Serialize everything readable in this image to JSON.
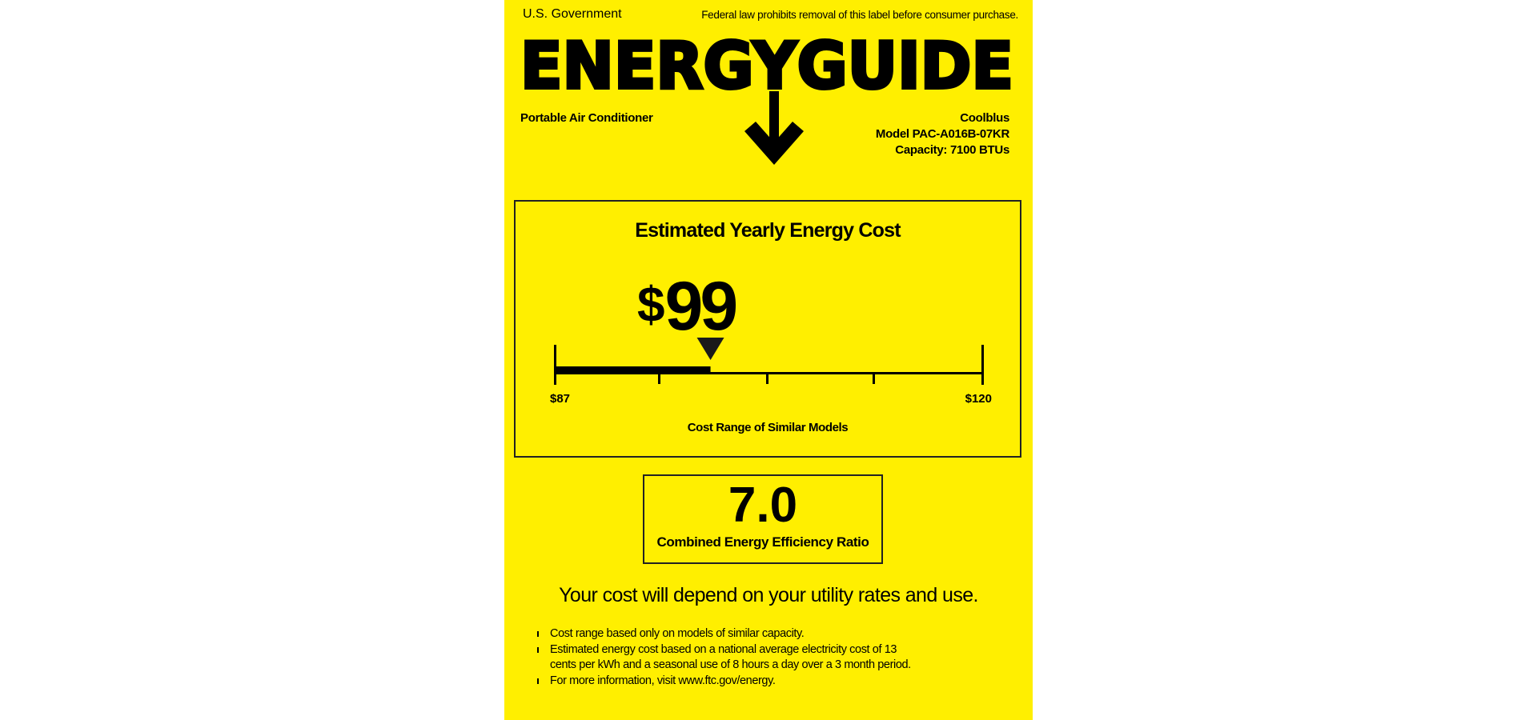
{
  "header": {
    "issuer": "U.S. Government",
    "legal_notice": "Federal law prohibits removal of this label before consumer purchase.",
    "logo_text": "ENERGYGUIDE",
    "product_type": "Portable Air Conditioner",
    "brand": "Coolblus",
    "model": "Model PAC-A016B-07KR",
    "capacity": "Capacity: 7100 BTUs"
  },
  "cost_section": {
    "title": "Estimated Yearly Energy Cost",
    "currency": "$",
    "amount": "99",
    "value": 99,
    "range_min": 87,
    "range_max": 120,
    "range_min_label": "$87",
    "range_max_label": "$120",
    "range_title": "Cost Range of Similar Models"
  },
  "efficiency": {
    "value": "7.0",
    "label": "Combined Energy Efficiency Ratio"
  },
  "footer": {
    "statement": "Your cost will depend on your utility rates and use.",
    "bullets": [
      [
        "Cost range based only on models of similar capacity."
      ],
      [
        "Estimated energy cost based on a national average electricity cost of 13",
        "cents per kWh and a seasonal use of 8 hours a day over a 3 month period."
      ],
      [
        "For more information, visit www.ftc.gov/energy."
      ]
    ]
  },
  "colors": {
    "label_background": "#ffef00",
    "ink": "#000000"
  }
}
